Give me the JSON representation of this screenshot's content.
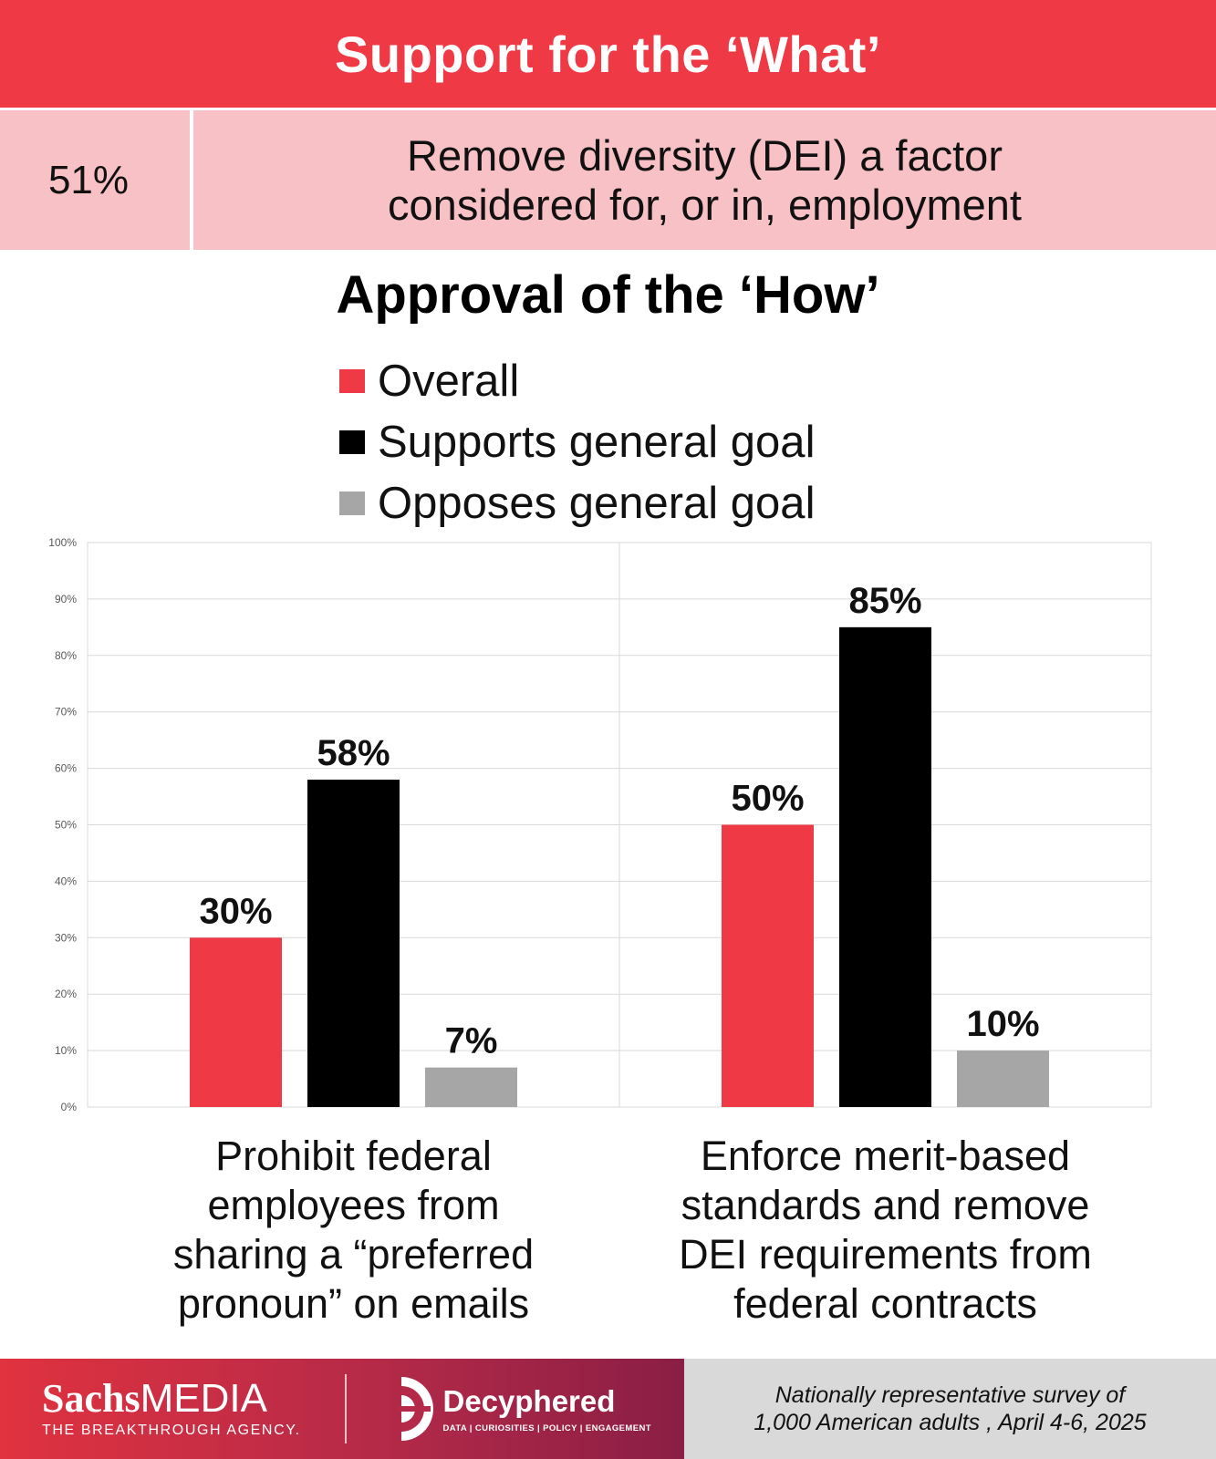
{
  "header": {
    "title": "Support for the ‘What’"
  },
  "what": {
    "percent": "51%",
    "line1": "Remove diversity (DEI) a factor",
    "line2": "considered for, or in, employment"
  },
  "chart_data": {
    "type": "bar",
    "title": "Approval of the ‘How’",
    "categories": [
      [
        "Prohibit federal",
        "employees from",
        "sharing a “preferred",
        "pronoun” on emails"
      ],
      [
        "Enforce merit-based",
        "standards and remove",
        "DEI requirements from",
        "federal contracts"
      ]
    ],
    "series": [
      {
        "name": "Overall",
        "color": "#ef3a45",
        "values": [
          30,
          50
        ]
      },
      {
        "name": "Supports general goal",
        "color": "#000000",
        "values": [
          58,
          85
        ]
      },
      {
        "name": "Opposes general goal",
        "color": "#a6a6a6",
        "values": [
          7,
          10
        ]
      }
    ],
    "ylim": [
      0,
      100
    ],
    "yticks": [
      "0%",
      "10%",
      "20%",
      "30%",
      "40%",
      "50%",
      "60%",
      "70%",
      "80%",
      "90%",
      "100%"
    ],
    "value_suffix": "%",
    "grid": true,
    "legend_position": "top"
  },
  "footer": {
    "sachs_bold": "Sachs",
    "sachs_light": "MEDIA",
    "sachs_tagline": "THE BREAKTHROUGH AGENCY.",
    "decy_name": "Decyphered",
    "decy_tagline": "DATA | CURIOSITIES | POLICY | ENGAGEMENT",
    "note_line1": "Nationally representative survey of",
    "note_line2": "1,000 American adults , April 4-6, 2025"
  }
}
